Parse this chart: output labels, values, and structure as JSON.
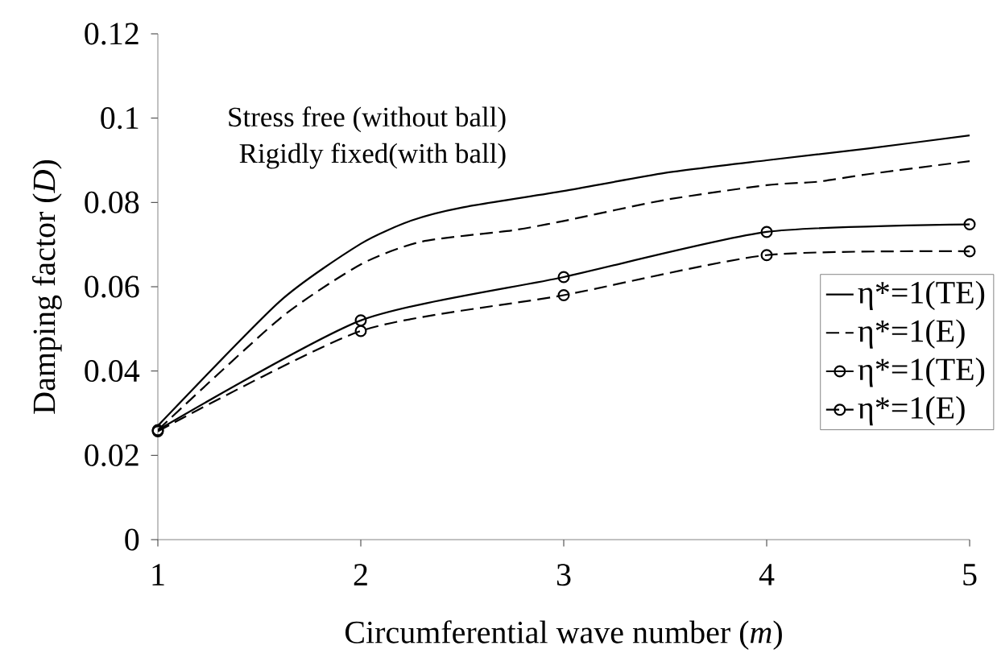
{
  "chart_data": {
    "type": "line",
    "xlabel": "Circumferential wave number (*m*)",
    "ylabel": "Damping factor (*D*)",
    "annotations": [
      "Stress free (without ball)",
      "Rigidly fixed(with ball)"
    ],
    "xlim": [
      1,
      5
    ],
    "ylim": [
      0,
      0.12
    ],
    "xticks": [
      1,
      2,
      3,
      4,
      5
    ],
    "yticks": [
      0,
      0.02,
      0.04,
      0.06,
      0.08,
      0.1,
      0.12
    ],
    "grid": false,
    "legend": "right",
    "series": [
      {
        "name": "η*=1(TE)",
        "color": "#000000",
        "line_style": "solid",
        "marker": "none",
        "x": [
          1,
          1.6,
          2,
          2.25,
          2.5,
          3,
          3.5,
          4,
          4.5,
          5
        ],
        "values": [
          0.027,
          0.0565,
          0.0702,
          0.0757,
          0.0788,
          0.0827,
          0.087,
          0.09,
          0.0928,
          0.0959
        ]
      },
      {
        "name": "η*=1(E)",
        "color": "#000000",
        "line_style": "dashed",
        "marker": "none",
        "x": [
          1,
          1.6,
          2,
          2.3,
          2.75,
          3,
          3.5,
          4,
          4.25,
          4.5,
          5
        ],
        "values": [
          0.026,
          0.0524,
          0.0653,
          0.0707,
          0.0734,
          0.0756,
          0.0806,
          0.0841,
          0.0849,
          0.0867,
          0.0898
        ]
      },
      {
        "name": "η*=1(TE)",
        "color": "#000000",
        "line_style": "solid",
        "marker": "circle",
        "x": [
          1,
          2,
          3,
          4,
          5
        ],
        "values": [
          0.026,
          0.052,
          0.0623,
          0.073,
          0.0748
        ]
      },
      {
        "name": "η*=1(E)",
        "color": "#000000",
        "line_style": "dashed",
        "marker": "circle",
        "x": [
          1,
          2,
          3,
          4,
          5
        ],
        "values": [
          0.0257,
          0.0495,
          0.058,
          0.0675,
          0.0684
        ]
      }
    ]
  }
}
